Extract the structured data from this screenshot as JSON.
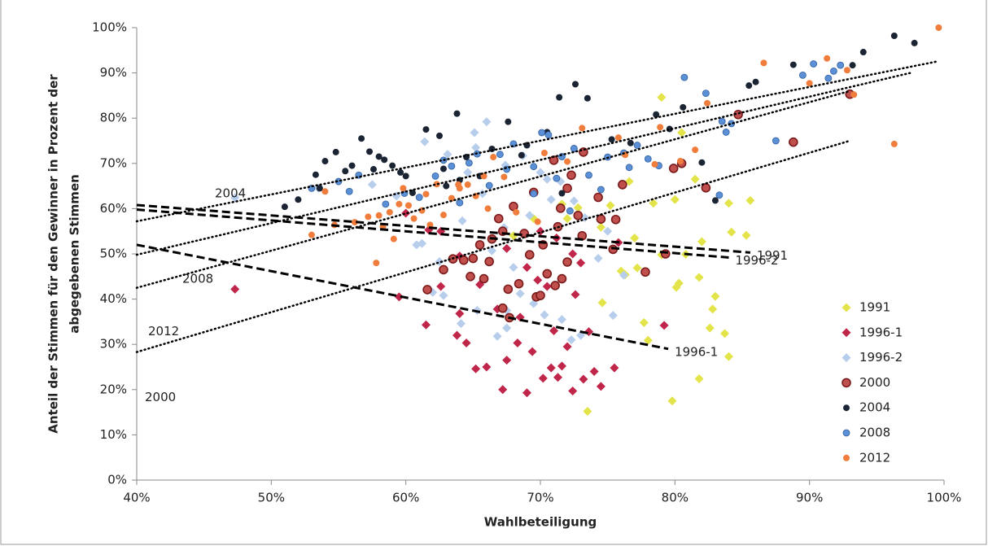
{
  "chart_data": {
    "type": "scatter",
    "x_label": "Wahlbeteiligung",
    "y_label": [
      "Anteil der Stimmen für den Gewinner in Prozent der",
      "abgegebenen Stimmen"
    ],
    "xlim": [
      40,
      100
    ],
    "ylim": [
      0,
      100
    ],
    "xticks": [
      {
        "value": 40,
        "label": "40%"
      },
      {
        "value": 50,
        "label": "50%"
      },
      {
        "value": 60,
        "label": "60%"
      },
      {
        "value": 70,
        "label": "70%"
      },
      {
        "value": 80,
        "label": "80%"
      },
      {
        "value": 90,
        "label": "90%"
      },
      {
        "value": 100,
        "label": "100%"
      }
    ],
    "yticks": [
      {
        "value": 0,
        "label": "0%"
      },
      {
        "value": 10,
        "label": "10%"
      },
      {
        "value": 20,
        "label": "20%"
      },
      {
        "value": 30,
        "label": "30%"
      },
      {
        "value": 40,
        "label": "40%"
      },
      {
        "value": 50,
        "label": "50%"
      },
      {
        "value": 60,
        "label": "60%"
      },
      {
        "value": 70,
        "label": "70%"
      },
      {
        "value": 80,
        "label": "80%"
      },
      {
        "value": 90,
        "label": "90%"
      },
      {
        "value": 100,
        "label": "100%"
      }
    ],
    "grid": false,
    "legend": "lower right",
    "series": [
      {
        "name": "1991",
        "color": "#e3e34a",
        "marker": "diamond",
        "x": [
          73.5,
          79.8,
          81.8,
          84,
          82.6,
          83.7,
          78,
          77.7,
          82.8,
          83,
          80.1,
          80.3,
          81.8,
          76.3,
          76,
          77.2,
          79,
          80.8,
          82,
          84.2,
          85.3,
          77,
          74.5,
          72,
          71.6,
          75.2,
          78.4,
          80,
          84,
          85.6,
          81.5,
          80.5,
          79,
          69.5,
          74.6,
          68,
          76.6,
          72.8
        ],
        "y": [
          15.2,
          17.5,
          22.4,
          27.3,
          33.6,
          32.4,
          30.9,
          34.8,
          37.8,
          40.6,
          42.6,
          43.5,
          44.8,
          45.4,
          46.2,
          46.9,
          49.8,
          49.9,
          52.7,
          54.8,
          54.1,
          53.5,
          55.9,
          57.8,
          61,
          60.7,
          61.2,
          62,
          61.2,
          61.8,
          66.5,
          76.8,
          84.6,
          57.8,
          39.2,
          54,
          66,
          60.2
        ]
      },
      {
        "name": "1996-1",
        "color": "#c0264a",
        "marker": "diamond",
        "x": [
          47.3,
          59.5,
          61.5,
          63.8,
          64.5,
          65.2,
          66,
          67.2,
          67.5,
          68.3,
          69,
          69.4,
          70.2,
          70.8,
          71.3,
          71.6,
          72,
          72.4,
          73.2,
          74,
          74.5,
          75.5,
          73.6,
          71,
          68.5,
          66.8,
          64,
          62.6,
          65.5,
          70.5,
          69.8,
          72.6,
          69,
          67.5,
          71.2,
          73,
          75.8,
          79.2,
          64,
          61.7,
          60,
          62.6,
          70,
          72.4
        ],
        "y": [
          42.2,
          40.5,
          34.3,
          32,
          30.3,
          24.6,
          25,
          20,
          26.5,
          30.3,
          19.3,
          28.4,
          22.5,
          24.8,
          22.7,
          25.2,
          29.5,
          19.7,
          22.3,
          24,
          20.7,
          24.8,
          32.8,
          33,
          36,
          37.8,
          36.8,
          42.8,
          43.2,
          42.8,
          44.2,
          41,
          47,
          51.2,
          53.5,
          48,
          52.5,
          34.2,
          49.5,
          55.3,
          59,
          55,
          55,
          50
        ]
      },
      {
        "name": "1996-2",
        "color": "#b7cdec",
        "marker": "diamond",
        "x": [
          47.3,
          53.5,
          57.5,
          59.3,
          61.2,
          62.5,
          62,
          62.8,
          64.1,
          65.3,
          66.8,
          67.5,
          67.5,
          68.5,
          69.5,
          70.3,
          71.6,
          72.3,
          73,
          74.3,
          75.4,
          76.2,
          75,
          73.3,
          72.5,
          70.5,
          70,
          68.7,
          67.4,
          66,
          65.1,
          65.2,
          63.1,
          61.4,
          64.2,
          65.7,
          66.4,
          67.3,
          69.2,
          70.8,
          71.5,
          60.8,
          64.6,
          68
        ],
        "y": [
          62.4,
          64.5,
          65.3,
          62.8,
          52.3,
          48.3,
          41.5,
          40.8,
          34.6,
          37.5,
          31.8,
          33.6,
          37.5,
          41.2,
          39,
          36.5,
          35.5,
          31,
          32,
          49,
          36.4,
          45.3,
          55,
          58,
          61.7,
          66.5,
          68,
          71.7,
          69.6,
          79.2,
          76.8,
          73.5,
          72,
          74.8,
          57.3,
          63.3,
          50.7,
          55.8,
          58.5,
          62,
          66,
          52,
          68,
          47
        ]
      },
      {
        "name": "2000",
        "color": "#c0504d",
        "marker": "circle-ring",
        "x": [
          61.6,
          62.8,
          63.5,
          64.3,
          65,
          65.8,
          66.4,
          67.2,
          67.2,
          67.6,
          67.7,
          68.4,
          69.2,
          69.7,
          70,
          70.5,
          71.1,
          71.6,
          71.3,
          71.5,
          72,
          72.3,
          72.8,
          73.1,
          74.5,
          75.4,
          75.6,
          77.8,
          79.3,
          79.9,
          80.5,
          82.3,
          84.7,
          88.8,
          93,
          65.5,
          68.8,
          70.2,
          66.9,
          74.3,
          68,
          73.2,
          71,
          76.1,
          69.5,
          72,
          66.2,
          64.8
        ],
        "y": [
          42.1,
          46.5,
          48.9,
          48.6,
          49,
          44.5,
          53.3,
          55,
          38,
          42.2,
          35.9,
          43.4,
          49.8,
          40.5,
          40.8,
          45.6,
          43,
          44.5,
          56,
          60.1,
          64.5,
          67.4,
          58.5,
          54,
          57.7,
          51,
          57.6,
          46,
          50,
          68.9,
          70,
          64.6,
          80.8,
          74.7,
          85.3,
          52,
          54.5,
          52,
          57.8,
          62.5,
          60.5,
          72.5,
          70.7,
          65.3,
          63.6,
          48.2,
          48.3,
          45
        ]
      },
      {
        "name": "2004",
        "color": "#1b2433",
        "marker": "circle",
        "x": [
          51,
          52,
          53.3,
          54,
          54.8,
          55.5,
          56.7,
          57.3,
          57.6,
          58.4,
          59,
          59.6,
          60,
          61.5,
          62.5,
          63.8,
          64.5,
          65.5,
          66.4,
          67.6,
          69,
          70.5,
          71.4,
          72.6,
          73.5,
          75.3,
          76.7,
          78.6,
          79.6,
          80.6,
          82,
          83,
          85.5,
          86,
          88.8,
          93.2,
          94,
          96.3,
          97.8,
          60.5,
          63,
          56,
          53.6,
          58,
          62.8,
          71.6,
          68.6,
          64
        ],
        "y": [
          60.4,
          62,
          67.5,
          70.5,
          72.5,
          68.3,
          75.5,
          72.6,
          68.7,
          70.8,
          69.5,
          68,
          67.2,
          77.5,
          76.1,
          81,
          71.4,
          67.2,
          73.2,
          79.2,
          74,
          76.9,
          84.6,
          87.5,
          84.4,
          75.3,
          74.5,
          80.8,
          77.6,
          82.4,
          70.2,
          61.8,
          87.2,
          88,
          91.8,
          91.7,
          94.6,
          98.2,
          96.6,
          63.5,
          65,
          69.5,
          64.5,
          71.5,
          68.8,
          63.4,
          71.8,
          66.3
        ]
      },
      {
        "name": "2008",
        "color": "#5b8fd6",
        "marker": "circle",
        "x": [
          53,
          55,
          55.8,
          56.5,
          58.5,
          59.9,
          61,
          62.2,
          62.8,
          63.4,
          64,
          64.7,
          65.3,
          66.2,
          67,
          67.5,
          68,
          69.5,
          69.5,
          70.1,
          70.6,
          71.2,
          71.6,
          72.5,
          73.6,
          74.5,
          75,
          76.2,
          77.2,
          78,
          78.8,
          80.7,
          82.3,
          83.5,
          83.8,
          84.2,
          87.5,
          89.5,
          90.3,
          91.4,
          92.3,
          91.8,
          83.3,
          72.2,
          76.6
        ],
        "y": [
          64.5,
          66,
          63.8,
          67.4,
          61,
          63.4,
          62.5,
          67.2,
          70.7,
          69.4,
          61.3,
          70.1,
          72.1,
          65.1,
          72,
          68.7,
          74.3,
          69.3,
          63.3,
          76.8,
          76.3,
          66.7,
          71.5,
          73.3,
          67.4,
          64.2,
          71.4,
          72.3,
          74,
          71,
          69.5,
          89,
          85.5,
          79.3,
          76.9,
          78.8,
          75,
          89.5,
          92,
          88.8,
          91.7,
          90.4,
          63,
          59.5,
          69.1
        ]
      },
      {
        "name": "2012",
        "color": "#f07d3c",
        "marker": "circle",
        "x": [
          53,
          54,
          54.7,
          56.2,
          57.2,
          57.8,
          58.3,
          58.8,
          59.1,
          59.5,
          60.2,
          60.6,
          61.2,
          61.8,
          62.3,
          62.8,
          63.4,
          63.9,
          64.6,
          65.2,
          65.8,
          66.1,
          66.5,
          67.3,
          68.2,
          69.8,
          70.3,
          72,
          73.1,
          75.8,
          76.3,
          78.5,
          78.9,
          80.4,
          81.5,
          82.4,
          86.6,
          90,
          91.3,
          92.8,
          93.3,
          96.3,
          99.6,
          59.8,
          61.5,
          64,
          58
        ],
        "y": [
          54.2,
          63.8,
          56.4,
          57,
          58.2,
          48,
          56,
          59.2,
          53.3,
          61,
          60.7,
          57.8,
          59.6,
          56.4,
          65.4,
          58.6,
          62.3,
          65.3,
          65.3,
          62.8,
          67.2,
          60,
          71.4,
          67,
          59.2,
          57.1,
          72.3,
          70.4,
          77.8,
          75.7,
          71.9,
          69.8,
          78,
          70.5,
          73,
          83.3,
          92.2,
          87.7,
          93.2,
          90.6,
          85.2,
          74.3,
          100,
          64.5,
          63.2,
          64.5,
          58.5
        ]
      }
    ],
    "trendlines": [
      {
        "label": "2004",
        "style": "dotted",
        "x": [
          40,
          99.6
        ],
        "y": [
          57.2,
          92.6
        ]
      },
      {
        "label": "2008",
        "style": "dotted",
        "x": [
          40,
          97.5
        ],
        "y": [
          49.8,
          90
        ]
      },
      {
        "label": "2012",
        "style": "dotted",
        "x": [
          40,
          93
        ],
        "y": [
          42.5,
          86
        ]
      },
      {
        "label": "2000",
        "style": "dotted",
        "x": [
          40,
          93
        ],
        "y": [
          28.3,
          75
        ]
      },
      {
        "label": "1991",
        "style": "dashed",
        "x": [
          40,
          85.6
        ],
        "y": [
          60.8,
          50.3
        ]
      },
      {
        "label": "1996-2",
        "style": "dashed",
        "x": [
          40,
          84
        ],
        "y": [
          59.8,
          49.2
        ]
      },
      {
        "label": "1996-1",
        "style": "dashed",
        "x": [
          40,
          79.5
        ],
        "y": [
          52,
          29
        ]
      }
    ]
  }
}
